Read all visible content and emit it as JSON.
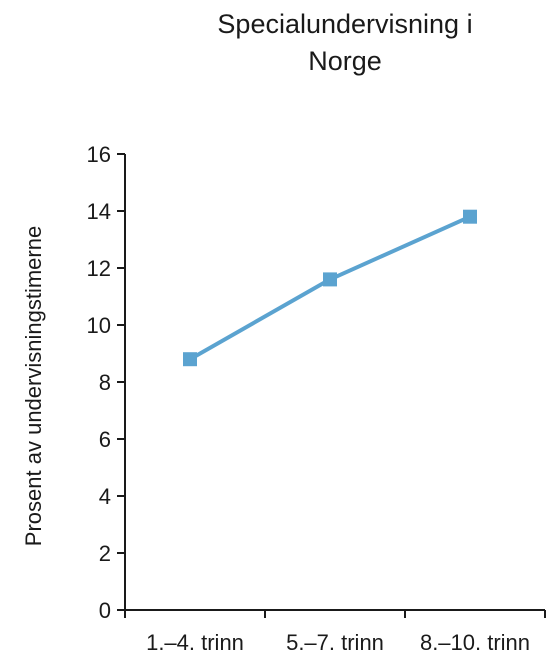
{
  "chart_data": {
    "type": "line",
    "title_lines": [
      "Specialundervisning i",
      "Norge"
    ],
    "xlabel": "",
    "ylabel": "Prosent av undervisningstimerne",
    "categories": [
      "1.–4. trinn",
      "5.–7. trinn",
      "8.–10. trinn"
    ],
    "series": [
      {
        "values": [
          8.8,
          11.6,
          13.8
        ],
        "color": "#5ba3d0",
        "marker": "square"
      }
    ],
    "ylim": [
      0,
      16
    ],
    "yticks": [
      0,
      2,
      4,
      6,
      8,
      10,
      12,
      14,
      16
    ],
    "grid": false,
    "legend": "none"
  }
}
